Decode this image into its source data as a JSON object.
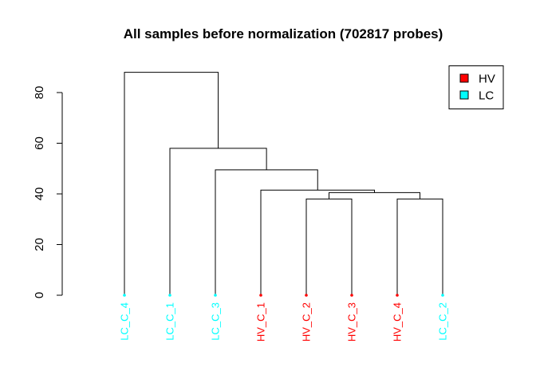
{
  "chart_data": {
    "type": "dendrogram",
    "title": "All samples before normalization (702817 probes)",
    "xlabel": "",
    "ylabel": "",
    "ylim": [
      0,
      90
    ],
    "yticks": [
      0,
      20,
      40,
      60,
      80
    ],
    "grid": false,
    "legend_position": "top-right",
    "legend": [
      {
        "label": "HV",
        "color": "#ff0000"
      },
      {
        "label": "LC",
        "color": "#00ffff"
      }
    ],
    "leaves": [
      {
        "label": "LC_C_4",
        "group": "LC",
        "color": "#00ffff"
      },
      {
        "label": "LC_C_1",
        "group": "LC",
        "color": "#00ffff"
      },
      {
        "label": "LC_C_3",
        "group": "LC",
        "color": "#00ffff"
      },
      {
        "label": "HV_C_1",
        "group": "HV",
        "color": "#ff0000"
      },
      {
        "label": "HV_C_2",
        "group": "HV",
        "color": "#ff0000"
      },
      {
        "label": "HV_C_3",
        "group": "HV",
        "color": "#ff0000"
      },
      {
        "label": "HV_C_4",
        "group": "HV",
        "color": "#ff0000"
      },
      {
        "label": "LC_C_2",
        "group": "LC",
        "color": "#00ffff"
      }
    ],
    "merges": [
      {
        "left": "HV_C_2",
        "right": "HV_C_3",
        "height": 38.0
      },
      {
        "left": "HV_C_4",
        "right": "LC_C_2",
        "height": 38.0
      },
      {
        "left": 1,
        "right": 2,
        "height": 40.5
      },
      {
        "left": "HV_C_1",
        "right": 3,
        "height": 41.5
      },
      {
        "left": "LC_C_3",
        "right": 4,
        "height": 49.5
      },
      {
        "left": "LC_C_1",
        "right": 5,
        "height": 58.0
      },
      {
        "left": "LC_C_4",
        "right": 6,
        "height": 88.0
      }
    ]
  }
}
